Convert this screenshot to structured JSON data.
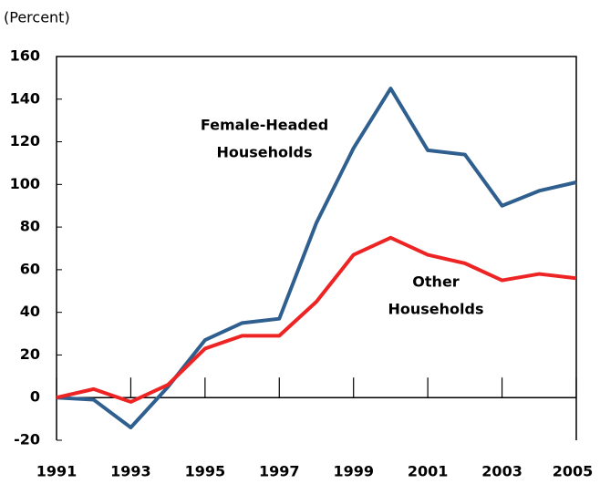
{
  "chart_data": {
    "type": "line",
    "y_unit_label": "(Percent)",
    "x": [
      1991,
      1992,
      1993,
      1994,
      1995,
      1996,
      1997,
      1998,
      1999,
      2000,
      2001,
      2002,
      2003,
      2004,
      2005
    ],
    "series": [
      {
        "label_lines": [
          "Female-Headed",
          "Households"
        ],
        "color": "#2f5f8f",
        "values": [
          0,
          -1,
          -14,
          5,
          27,
          35,
          37,
          82,
          117,
          145,
          116,
          114,
          90,
          97,
          101
        ]
      },
      {
        "label_lines": [
          "Other",
          "Households"
        ],
        "color": "#ee2424",
        "values": [
          0,
          4,
          -2,
          6,
          23,
          29,
          29,
          45,
          67,
          75,
          67,
          63,
          55,
          58,
          56
        ]
      }
    ],
    "xlim": [
      1991,
      2005
    ],
    "xticks": [
      1991,
      1993,
      1995,
      1997,
      1999,
      2001,
      2003,
      2005
    ],
    "ylim": [
      -20,
      160
    ],
    "yticks": [
      -20,
      0,
      20,
      40,
      60,
      80,
      100,
      120,
      140,
      160
    ],
    "grid": false
  }
}
